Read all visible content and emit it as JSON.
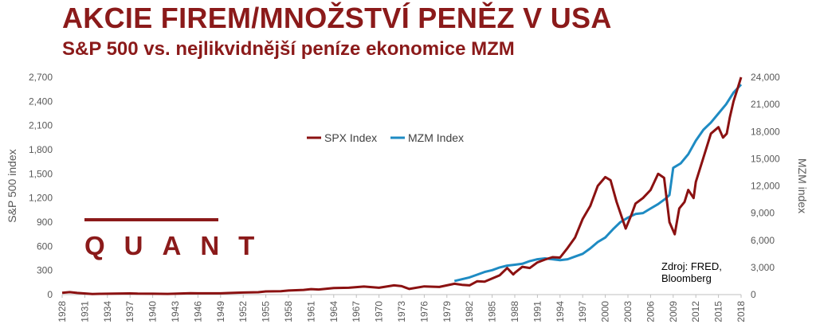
{
  "header": {
    "title": "AKCIE FIREM/MNOŽSTVÍ PENĚZ V USA",
    "subtitle": "S&P 500 vs. nejlikvidnější peníze ekonomice MZM"
  },
  "brand": {
    "text": "QUANT"
  },
  "source": {
    "line1": "Zdroj: FRED,",
    "line2": "Bloomberg"
  },
  "colors": {
    "title": "#8b1a1a",
    "spx": "#8b1111",
    "mzm": "#1e8bc3",
    "axis": "#595959"
  },
  "chart_data": {
    "type": "line",
    "xlabel": "",
    "ylabel": "S&P 500 index",
    "ylabel_right": "MZM index",
    "xlim": [
      1928,
      2018
    ],
    "ylim": [
      0,
      2700
    ],
    "ylim_right": [
      0,
      24000
    ],
    "x_ticks": [
      "1928",
      "1931",
      "1934",
      "1937",
      "1940",
      "1943",
      "1946",
      "1949",
      "1952",
      "1955",
      "1958",
      "1961",
      "1964",
      "1967",
      "1970",
      "1973",
      "1976",
      "1979",
      "1982",
      "1985",
      "1988",
      "1991",
      "1994",
      "1997",
      "2000",
      "2003",
      "2006",
      "2009",
      "2012",
      "2015",
      "2018"
    ],
    "y_ticks_left": [
      "0",
      "300",
      "600",
      "900",
      "1,200",
      "1,500",
      "1,800",
      "2,100",
      "2,400",
      "2,700"
    ],
    "y_ticks_right": [
      "0",
      "3,000",
      "6,000",
      "9,000",
      "12,000",
      "15,000",
      "18,000",
      "21,000",
      "24,000"
    ],
    "grid": false,
    "legend_position": "top-center",
    "series": [
      {
        "name": "SPX Index",
        "axis": "left",
        "x": [
          1928,
          1929,
          1930,
          1932,
          1933,
          1935,
          1937,
          1938,
          1940,
          1942,
          1945,
          1946,
          1949,
          1950,
          1952,
          1954,
          1955,
          1957,
          1958,
          1960,
          1961,
          1962,
          1964,
          1966,
          1968,
          1970,
          1971,
          1972,
          1973,
          1974,
          1976,
          1978,
          1980,
          1981,
          1982,
          1983,
          1984,
          1985,
          1986,
          1987,
          1987.8,
          1988,
          1989,
          1990,
          1991,
          1992,
          1993,
          1994,
          1995,
          1996,
          1997,
          1998,
          1999,
          2000,
          2000.7,
          2001.5,
          2002.7,
          2003.5,
          2004,
          2005,
          2006,
          2007,
          2007.8,
          2008.5,
          2009.2,
          2009.8,
          2010.5,
          2011,
          2011.7,
          2012,
          2013,
          2014,
          2015,
          2015.6,
          2016.1,
          2016.5,
          2017,
          2017.5,
          2018
        ],
        "y": [
          22,
          31,
          21,
          7,
          10,
          13,
          15,
          12,
          11,
          9,
          17,
          16,
          16,
          20,
          26,
          30,
          40,
          42,
          50,
          58,
          68,
          63,
          82,
          85,
          100,
          85,
          100,
          115,
          105,
          70,
          102,
          95,
          135,
          122,
          115,
          165,
          160,
          200,
          240,
          330,
          250,
          270,
          345,
          330,
          400,
          435,
          465,
          460,
          580,
          710,
          940,
          1100,
          1350,
          1460,
          1420,
          1150,
          820,
          1000,
          1130,
          1200,
          1300,
          1500,
          1450,
          900,
          750,
          1070,
          1150,
          1300,
          1200,
          1400,
          1700,
          2000,
          2080,
          1950,
          2000,
          2200,
          2400,
          2550,
          2700
        ]
      },
      {
        "name": "MZM Index",
        "axis": "right",
        "x": [
          1980,
          1981,
          1982,
          1983,
          1984,
          1985,
          1986,
          1987,
          1988,
          1989,
          1990,
          1991,
          1992,
          1993,
          1994,
          1995,
          1996,
          1997,
          1998,
          1999,
          2000,
          2001,
          2002,
          2003,
          2004,
          2005,
          2006,
          2007,
          2008,
          2008.5,
          2009,
          2010,
          2011,
          2012,
          2013,
          2014,
          2015,
          2016,
          2017,
          2018
        ],
        "y": [
          1500,
          1700,
          1900,
          2200,
          2500,
          2700,
          3000,
          3200,
          3300,
          3400,
          3700,
          3900,
          4000,
          3900,
          3800,
          3900,
          4200,
          4500,
          5100,
          5800,
          6300,
          7200,
          8000,
          8500,
          8900,
          9000,
          9500,
          10000,
          10600,
          11000,
          14000,
          14500,
          15500,
          17000,
          18200,
          19000,
          20000,
          21000,
          22300,
          23200
        ]
      }
    ]
  }
}
